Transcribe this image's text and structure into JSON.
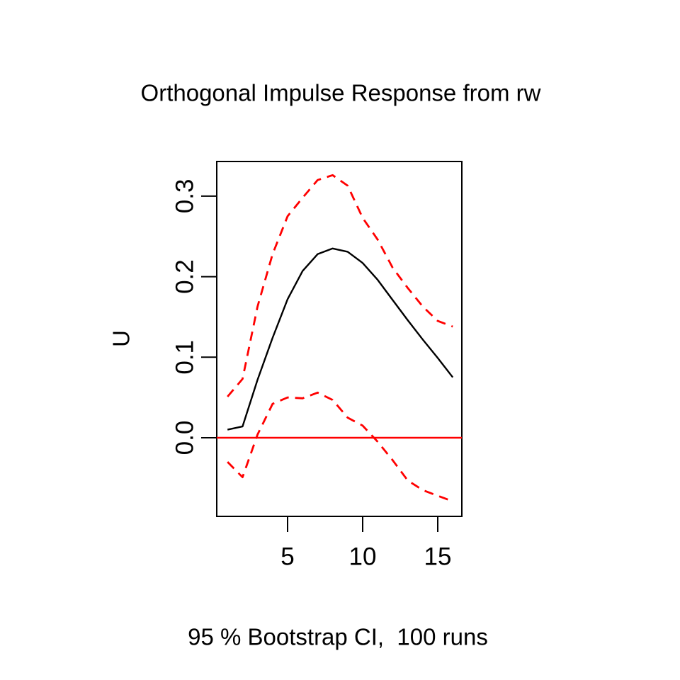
{
  "figure": {
    "background": "#ffffff",
    "accent_red": "#FF0000",
    "line_black": "#000000"
  },
  "chart_data": {
    "type": "line",
    "title": "Orthogonal Impulse Response from rw",
    "ylabel": "U",
    "xlabel": "",
    "caption": "95 % Bootstrap CI,  100 runs",
    "grid": false,
    "legend": null,
    "xlim": [
      0.4,
      16.6
    ],
    "ylim": [
      -0.097,
      0.343
    ],
    "x": [
      1,
      2,
      3,
      4,
      5,
      6,
      7,
      8,
      9,
      10,
      11,
      12,
      13,
      14,
      15,
      16
    ],
    "series": [
      {
        "name": "irf",
        "label": "orthogonal impulse response of U to rw shock",
        "color": "#000000",
        "linestyle": "solid",
        "values": [
          0.01,
          0.014,
          0.072,
          0.124,
          0.172,
          0.207,
          0.228,
          0.235,
          0.231,
          0.217,
          0.196,
          0.171,
          0.146,
          0.122,
          0.099,
          0.075
        ]
      },
      {
        "name": "upper-ci",
        "label": "upper 95% bootstrap CI",
        "color": "#FF0000",
        "linestyle": "dashed",
        "values": [
          0.051,
          0.073,
          0.163,
          0.228,
          0.275,
          0.298,
          0.32,
          0.326,
          0.313,
          0.273,
          0.246,
          0.211,
          0.186,
          0.163,
          0.145,
          0.138
        ]
      },
      {
        "name": "lower-ci",
        "label": "lower 95% bootstrap CI",
        "color": "#FF0000",
        "linestyle": "dashed",
        "values": [
          -0.03,
          -0.049,
          0.004,
          0.042,
          0.05,
          0.049,
          0.056,
          0.047,
          0.025,
          0.015,
          -0.005,
          -0.028,
          -0.053,
          -0.065,
          -0.072,
          -0.079
        ]
      }
    ],
    "zero_line": {
      "y": 0,
      "color": "#FF0000",
      "style": "solid"
    },
    "x_ticks": {
      "values": [
        5,
        10,
        15
      ],
      "labels": [
        "5",
        "10",
        "15"
      ]
    },
    "y_ticks": {
      "values": [
        0.0,
        0.1,
        0.2,
        0.3
      ],
      "labels": [
        "0.0",
        "0.1",
        "0.2",
        "0.3"
      ]
    }
  }
}
